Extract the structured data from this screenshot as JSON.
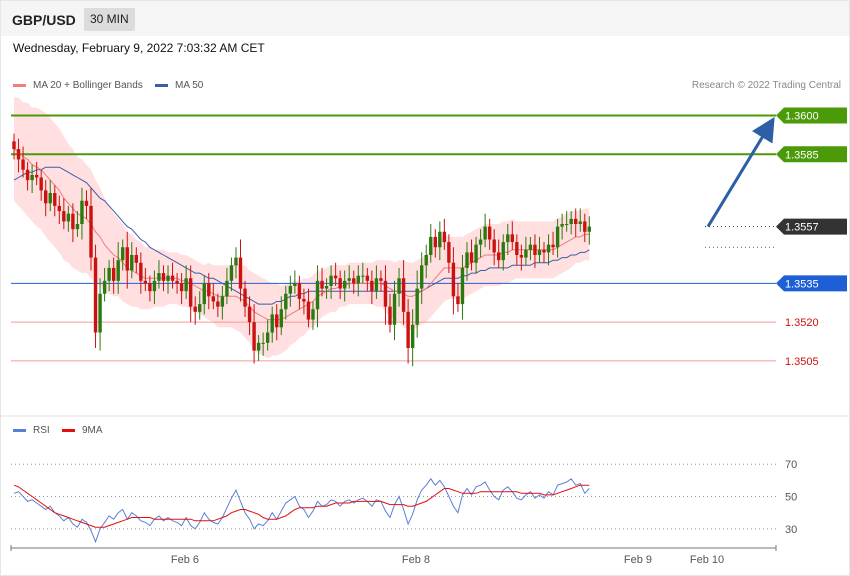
{
  "header": {
    "pair": "GBP/USD",
    "timeframe": "30 MIN"
  },
  "datetime": "Wednesday, February 9, 2022 7:03:32 AM CET",
  "legend": {
    "ma20_label": "MA 20 + Bollinger Bands",
    "ma50_label": "MA 50",
    "credit": "Research © 2022 Trading Central"
  },
  "rsi_legend": {
    "rsi_label": "RSI",
    "ma9_label": "9MA"
  },
  "colors": {
    "bull": "#2a7a10",
    "bear": "#cc1111",
    "band_fill": "#ffd7d7",
    "ma20": "#f07a7a",
    "ma50": "#3b5ea8",
    "resistance": "#4b9a0a",
    "pivot": "#1f5fd6",
    "support": "#f39a9a",
    "current": "#333333",
    "arrow": "#2d5fa6"
  },
  "chart_data": [
    {
      "type": "candlestick",
      "title": "GBP/USD",
      "ylim": [
        1.3486,
        1.3606
      ],
      "x_ticks": [
        "Feb 6",
        "Feb 8",
        "Feb 9",
        "Feb 10"
      ],
      "levels": [
        {
          "label": "1.3600",
          "value": 1.36,
          "kind": "resistance"
        },
        {
          "label": "1.3585",
          "value": 1.3585,
          "kind": "resistance"
        },
        {
          "label": "1.3557",
          "value": 1.3557,
          "kind": "current"
        },
        {
          "label": "1.3535",
          "value": 1.3535,
          "kind": "pivot"
        },
        {
          "label": "1.3520",
          "value": 1.352,
          "kind": "support"
        },
        {
          "label": "1.3505",
          "value": 1.3505,
          "kind": "support"
        }
      ],
      "close": [
        1.3587,
        1.3583,
        1.3579,
        1.3575,
        1.3577,
        1.3576,
        1.3571,
        1.3566,
        1.357,
        1.3565,
        1.3563,
        1.3559,
        1.3562,
        1.3556,
        1.3558,
        1.3567,
        1.3565,
        1.3545,
        1.3516,
        1.3531,
        1.3536,
        1.3541,
        1.3536,
        1.3544,
        1.3549,
        1.354,
        1.3546,
        1.3543,
        1.3536,
        1.3535,
        1.3532,
        1.3536,
        1.3539,
        1.3536,
        1.3538,
        1.3536,
        1.3535,
        1.3532,
        1.3537,
        1.3526,
        1.3524,
        1.3527,
        1.3535,
        1.353,
        1.3528,
        1.3526,
        1.353,
        1.3536,
        1.3542,
        1.3545,
        1.3533,
        1.3526,
        1.352,
        1.3509,
        1.3512,
        1.3512,
        1.3516,
        1.3523,
        1.3518,
        1.3525,
        1.3531,
        1.3534,
        1.3535,
        1.3529,
        1.3528,
        1.3521,
        1.3525,
        1.3536,
        1.3533,
        1.3534,
        1.3538,
        1.3537,
        1.3533,
        1.3536,
        1.3537,
        1.3535,
        1.3538,
        1.3538,
        1.3536,
        1.3532,
        1.3537,
        1.3536,
        1.3526,
        1.3519,
        1.3531,
        1.3537,
        1.3524,
        1.351,
        1.3519,
        1.3533,
        1.3542,
        1.3546,
        1.3553,
        1.3549,
        1.3555,
        1.3551,
        1.3543,
        1.353,
        1.3527,
        1.3541,
        1.3547,
        1.3543,
        1.355,
        1.3552,
        1.3557,
        1.3552,
        1.3547,
        1.3544,
        1.3551,
        1.3554,
        1.3551,
        1.3546,
        1.3545,
        1.3548,
        1.355,
        1.3546,
        1.3548,
        1.3547,
        1.355,
        1.3549,
        1.3557,
        1.3558,
        1.3558,
        1.356,
        1.3558,
        1.3559,
        1.3555,
        1.3557
      ],
      "series": [
        {
          "name": "MA 20",
          "values": [
            1.3587,
            1.3586,
            1.3584,
            1.3583,
            1.3581,
            1.358,
            1.3579,
            1.3577,
            1.3575,
            1.3573,
            1.3571,
            1.3568,
            1.3566,
            1.3564,
            1.3562,
            1.3561,
            1.356,
            1.3558,
            1.3555,
            1.3553,
            1.355,
            1.3548,
            1.3546,
            1.3545,
            1.3543,
            1.3541,
            1.354,
            1.3539,
            1.3538,
            1.3537,
            1.3537,
            1.3537,
            1.3537,
            1.3537,
            1.3537,
            1.3537,
            1.3537,
            1.3536,
            1.3536,
            1.3535,
            1.3534,
            1.3533,
            1.3532,
            1.3532,
            1.3531,
            1.353,
            1.353,
            1.353,
            1.353,
            1.353,
            1.3529,
            1.3528,
            1.3526,
            1.3524,
            1.3523,
            1.3522,
            1.3521,
            1.3521,
            1.3521,
            1.3521,
            1.3522,
            1.3523,
            1.3524,
            1.3525,
            1.3526,
            1.3527,
            1.3528,
            1.353,
            1.3531,
            1.3532,
            1.3533,
            1.3533,
            1.3534,
            1.3534,
            1.3535,
            1.3535,
            1.3535,
            1.3535,
            1.3535,
            1.3535,
            1.3535,
            1.3535,
            1.3534,
            1.3533,
            1.3532,
            1.3532,
            1.3531,
            1.353,
            1.353,
            1.3531,
            1.3532,
            1.3533,
            1.3535,
            1.3537,
            1.3539,
            1.3541,
            1.3541,
            1.3541,
            1.3541,
            1.3541,
            1.3542,
            1.3543,
            1.3544,
            1.3545,
            1.3546,
            1.3546,
            1.3546,
            1.3546,
            1.3547,
            1.3547,
            1.3548,
            1.3548,
            1.3548,
            1.3548,
            1.3548,
            1.3548,
            1.3548,
            1.3548,
            1.3548,
            1.3548,
            1.3549,
            1.355,
            1.3551,
            1.3552,
            1.3553,
            1.3553,
            1.3554,
            1.3554
          ]
        },
        {
          "name": "MA 50",
          "values": [
            1.3575,
            1.3576,
            1.3577,
            1.3578,
            1.3578,
            1.3579,
            1.3579,
            1.358,
            1.358,
            1.358,
            1.358,
            1.3579,
            1.3578,
            1.3577,
            1.3576,
            1.3575,
            1.3574,
            1.3572,
            1.357,
            1.3568,
            1.3567,
            1.3565,
            1.3563,
            1.3561,
            1.3559,
            1.3557,
            1.3556,
            1.3554,
            1.3552,
            1.3551,
            1.3549,
            1.3548,
            1.3547,
            1.3546,
            1.3545,
            1.3544,
            1.3543,
            1.3542,
            1.3541,
            1.354,
            1.3539,
            1.3539,
            1.3538,
            1.3537,
            1.3537,
            1.3536,
            1.3535,
            1.3534,
            1.3533,
            1.3532,
            1.3531,
            1.353,
            1.3529,
            1.3528,
            1.3527,
            1.3527,
            1.3527,
            1.3527,
            1.3528,
            1.3528,
            1.3529,
            1.353,
            1.353,
            1.3531,
            1.3531,
            1.3532,
            1.3532,
            1.3532,
            1.3532,
            1.3532,
            1.3532,
            1.3532,
            1.3532,
            1.3532,
            1.3532,
            1.3532,
            1.3532,
            1.3532,
            1.3532,
            1.3532,
            1.3532,
            1.3532,
            1.3532,
            1.3532,
            1.3532,
            1.3532,
            1.3532,
            1.3532,
            1.3532,
            1.3532,
            1.3532,
            1.3533,
            1.3534,
            1.3535,
            1.3536,
            1.3537,
            1.3537,
            1.3537,
            1.3537,
            1.3538,
            1.3538,
            1.3539,
            1.3539,
            1.354,
            1.354,
            1.3541,
            1.3541,
            1.3541,
            1.3541,
            1.3541,
            1.3542,
            1.3542,
            1.3542,
            1.3542,
            1.3542,
            1.3543,
            1.3543,
            1.3543,
            1.3543,
            1.3544,
            1.3544,
            1.3545,
            1.3545,
            1.3546,
            1.3546,
            1.3547,
            1.3547,
            1.3548
          ]
        }
      ],
      "bollinger_half_width": [
        0.002,
        0.0021,
        0.0021,
        0.0022,
        0.0022,
        0.0023,
        0.0023,
        0.0024,
        0.0024,
        0.0024,
        0.0024,
        0.0024,
        0.0023,
        0.0023,
        0.0022,
        0.0022,
        0.0021,
        0.0021,
        0.002,
        0.0019,
        0.0018,
        0.0017,
        0.0016,
        0.0015,
        0.0015,
        0.0014,
        0.0014,
        0.0013,
        0.0013,
        0.0012,
        0.0012,
        0.0011,
        0.0011,
        0.0011,
        0.001,
        0.001,
        0.001,
        0.001,
        0.001,
        0.001,
        0.001,
        0.001,
        0.001,
        0.0011,
        0.0011,
        0.0012,
        0.0012,
        0.0012,
        0.0012,
        0.0013,
        0.0013,
        0.0014,
        0.0014,
        0.0015,
        0.0015,
        0.0015,
        0.0015,
        0.0014,
        0.0014,
        0.0013,
        0.0013,
        0.0012,
        0.0012,
        0.0011,
        0.0011,
        0.001,
        0.001,
        0.001,
        0.0009,
        0.0009,
        0.0009,
        0.0009,
        0.0008,
        0.0008,
        0.0008,
        0.0008,
        0.0008,
        0.0008,
        0.0008,
        0.0008,
        0.0009,
        0.0009,
        0.001,
        0.0011,
        0.0011,
        0.0012,
        0.0013,
        0.0013,
        0.0013,
        0.0013,
        0.0013,
        0.0013,
        0.0013,
        0.0013,
        0.0013,
        0.0013,
        0.0012,
        0.0012,
        0.0012,
        0.0012,
        0.0012,
        0.0012,
        0.0012,
        0.0012,
        0.0012,
        0.0012,
        0.0012,
        0.0012,
        0.0012,
        0.0012,
        0.0012,
        0.0011,
        0.0011,
        0.0011,
        0.0011,
        0.0011,
        0.0011,
        0.0011,
        0.0011,
        0.0011,
        0.0011,
        0.0011,
        0.0011,
        0.0011,
        0.001,
        0.001,
        0.001,
        0.001
      ]
    },
    {
      "type": "line",
      "title": "RSI",
      "ylim": [
        20,
        85
      ],
      "y_ticks": [
        "70",
        "50",
        "30"
      ],
      "series": [
        {
          "name": "RSI",
          "values": [
            52,
            53,
            50,
            47,
            48,
            46,
            44,
            42,
            44,
            40,
            38,
            35,
            37,
            33,
            31,
            36,
            34,
            29,
            22,
            30,
            34,
            38,
            36,
            40,
            42,
            36,
            40,
            38,
            35,
            34,
            32,
            36,
            38,
            35,
            37,
            35,
            34,
            32,
            37,
            32,
            30,
            34,
            40,
            36,
            34,
            33,
            37,
            43,
            49,
            54,
            47,
            40,
            36,
            30,
            33,
            32,
            35,
            40,
            36,
            41,
            46,
            48,
            50,
            44,
            42,
            37,
            41,
            47,
            44,
            45,
            48,
            47,
            44,
            47,
            48,
            46,
            48,
            49,
            47,
            44,
            48,
            47,
            41,
            37,
            45,
            50,
            42,
            33,
            39,
            48,
            54,
            57,
            61,
            57,
            60,
            56,
            50,
            44,
            40,
            51,
            55,
            51,
            56,
            57,
            59,
            54,
            50,
            48,
            54,
            56,
            53,
            49,
            48,
            51,
            53,
            49,
            51,
            49,
            53,
            51,
            57,
            58,
            59,
            61,
            57,
            58,
            52,
            55
          ]
        },
        {
          "name": "9MA",
          "values": [
            57,
            56,
            54,
            52,
            50,
            48,
            46,
            44,
            42,
            40,
            39,
            38,
            37,
            36,
            35,
            34,
            33,
            32,
            31,
            31,
            31,
            32,
            33,
            34,
            35,
            36,
            37,
            37,
            37,
            37,
            37,
            36,
            36,
            36,
            36,
            36,
            36,
            36,
            36,
            36,
            35,
            35,
            35,
            35,
            35,
            36,
            37,
            38,
            40,
            41,
            42,
            42,
            41,
            40,
            39,
            37,
            36,
            36,
            36,
            37,
            38,
            40,
            42,
            43,
            43,
            43,
            43,
            44,
            44,
            44,
            45,
            46,
            46,
            46,
            46,
            47,
            47,
            47,
            47,
            47,
            47,
            47,
            46,
            45,
            45,
            45,
            45,
            44,
            44,
            45,
            46,
            47,
            49,
            51,
            53,
            55,
            55,
            54,
            53,
            52,
            52,
            52,
            52,
            53,
            53,
            53,
            53,
            53,
            53,
            53,
            53,
            53,
            52,
            52,
            52,
            52,
            52,
            51,
            51,
            51,
            52,
            53,
            54,
            55,
            56,
            57,
            57,
            57
          ]
        }
      ],
      "reference_lines": [
        70,
        50,
        30
      ]
    }
  ]
}
